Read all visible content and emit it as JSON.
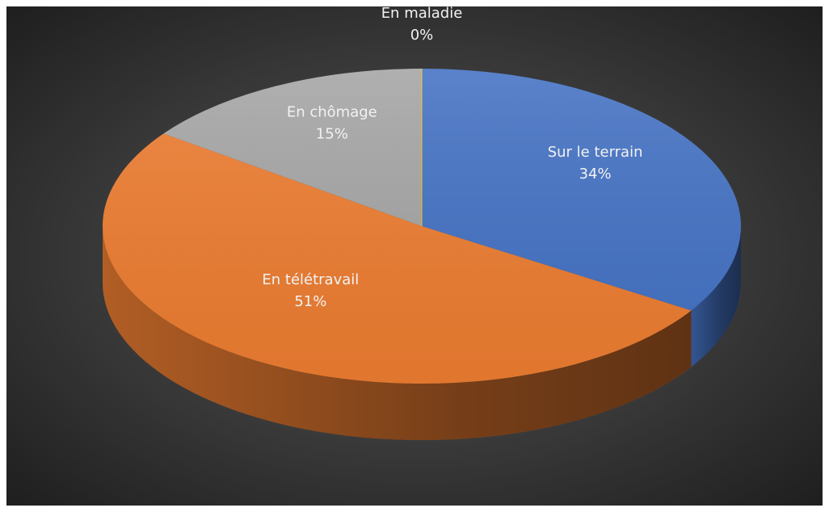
{
  "chart_data": {
    "type": "pie",
    "categories": [
      "Sur le terrain",
      "En télétravail",
      "En chômage",
      "En maladie"
    ],
    "values": [
      34,
      51,
      15,
      0
    ],
    "value_labels": [
      "34%",
      "51%",
      "15%",
      "0%"
    ],
    "colors": [
      "#4472c4",
      "#ed7d31",
      "#a5a5a5",
      "#ffc000"
    ]
  }
}
